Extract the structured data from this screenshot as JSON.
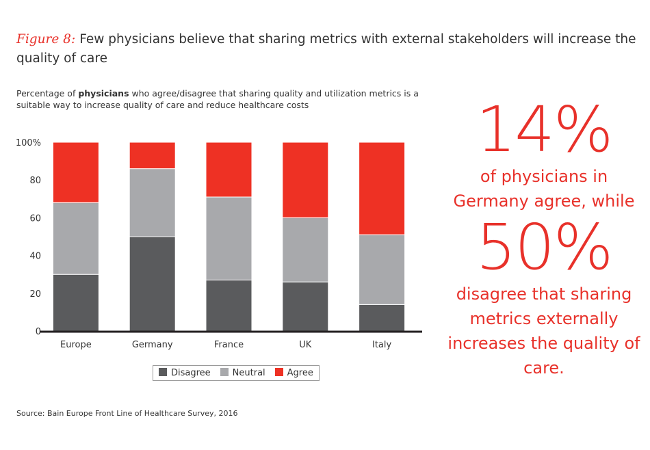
{
  "header": {
    "figure_label": "Figure 8:",
    "title": "Few physicians believe that sharing metrics with external stakeholders will increase the quality of care"
  },
  "subtitle": {
    "before": "Percentage of ",
    "bold": "physicians",
    "after": " who agree/disagree that sharing quality and utilization metrics is a suitable way to increase quality of care and reduce healthcare costs"
  },
  "callout": {
    "stat1": "14%",
    "text1": "of physicians in Germany agree, while",
    "stat2": "50%",
    "text2": "disagree that sharing metrics externally increases the quality of care."
  },
  "source": "Source: Bain Europe Front Line of Healthcare Survey, 2016",
  "chart_data": {
    "type": "bar",
    "stacked": true,
    "categories": [
      "Europe",
      "Germany",
      "France",
      "UK",
      "Italy"
    ],
    "series": [
      {
        "name": "Disagree",
        "color": "#5a5b5d",
        "values": [
          30,
          50,
          27,
          26,
          14
        ]
      },
      {
        "name": "Neutral",
        "color": "#a8a9ac",
        "values": [
          38,
          36,
          44,
          34,
          37
        ]
      },
      {
        "name": "Agree",
        "color": "#ee3124",
        "values": [
          32,
          14,
          29,
          40,
          49
        ]
      }
    ],
    "yticks": [
      "0",
      "20",
      "40",
      "60",
      "80",
      "100%"
    ],
    "ylim": [
      0,
      100
    ],
    "grid": false,
    "legend_position": "bottom"
  }
}
